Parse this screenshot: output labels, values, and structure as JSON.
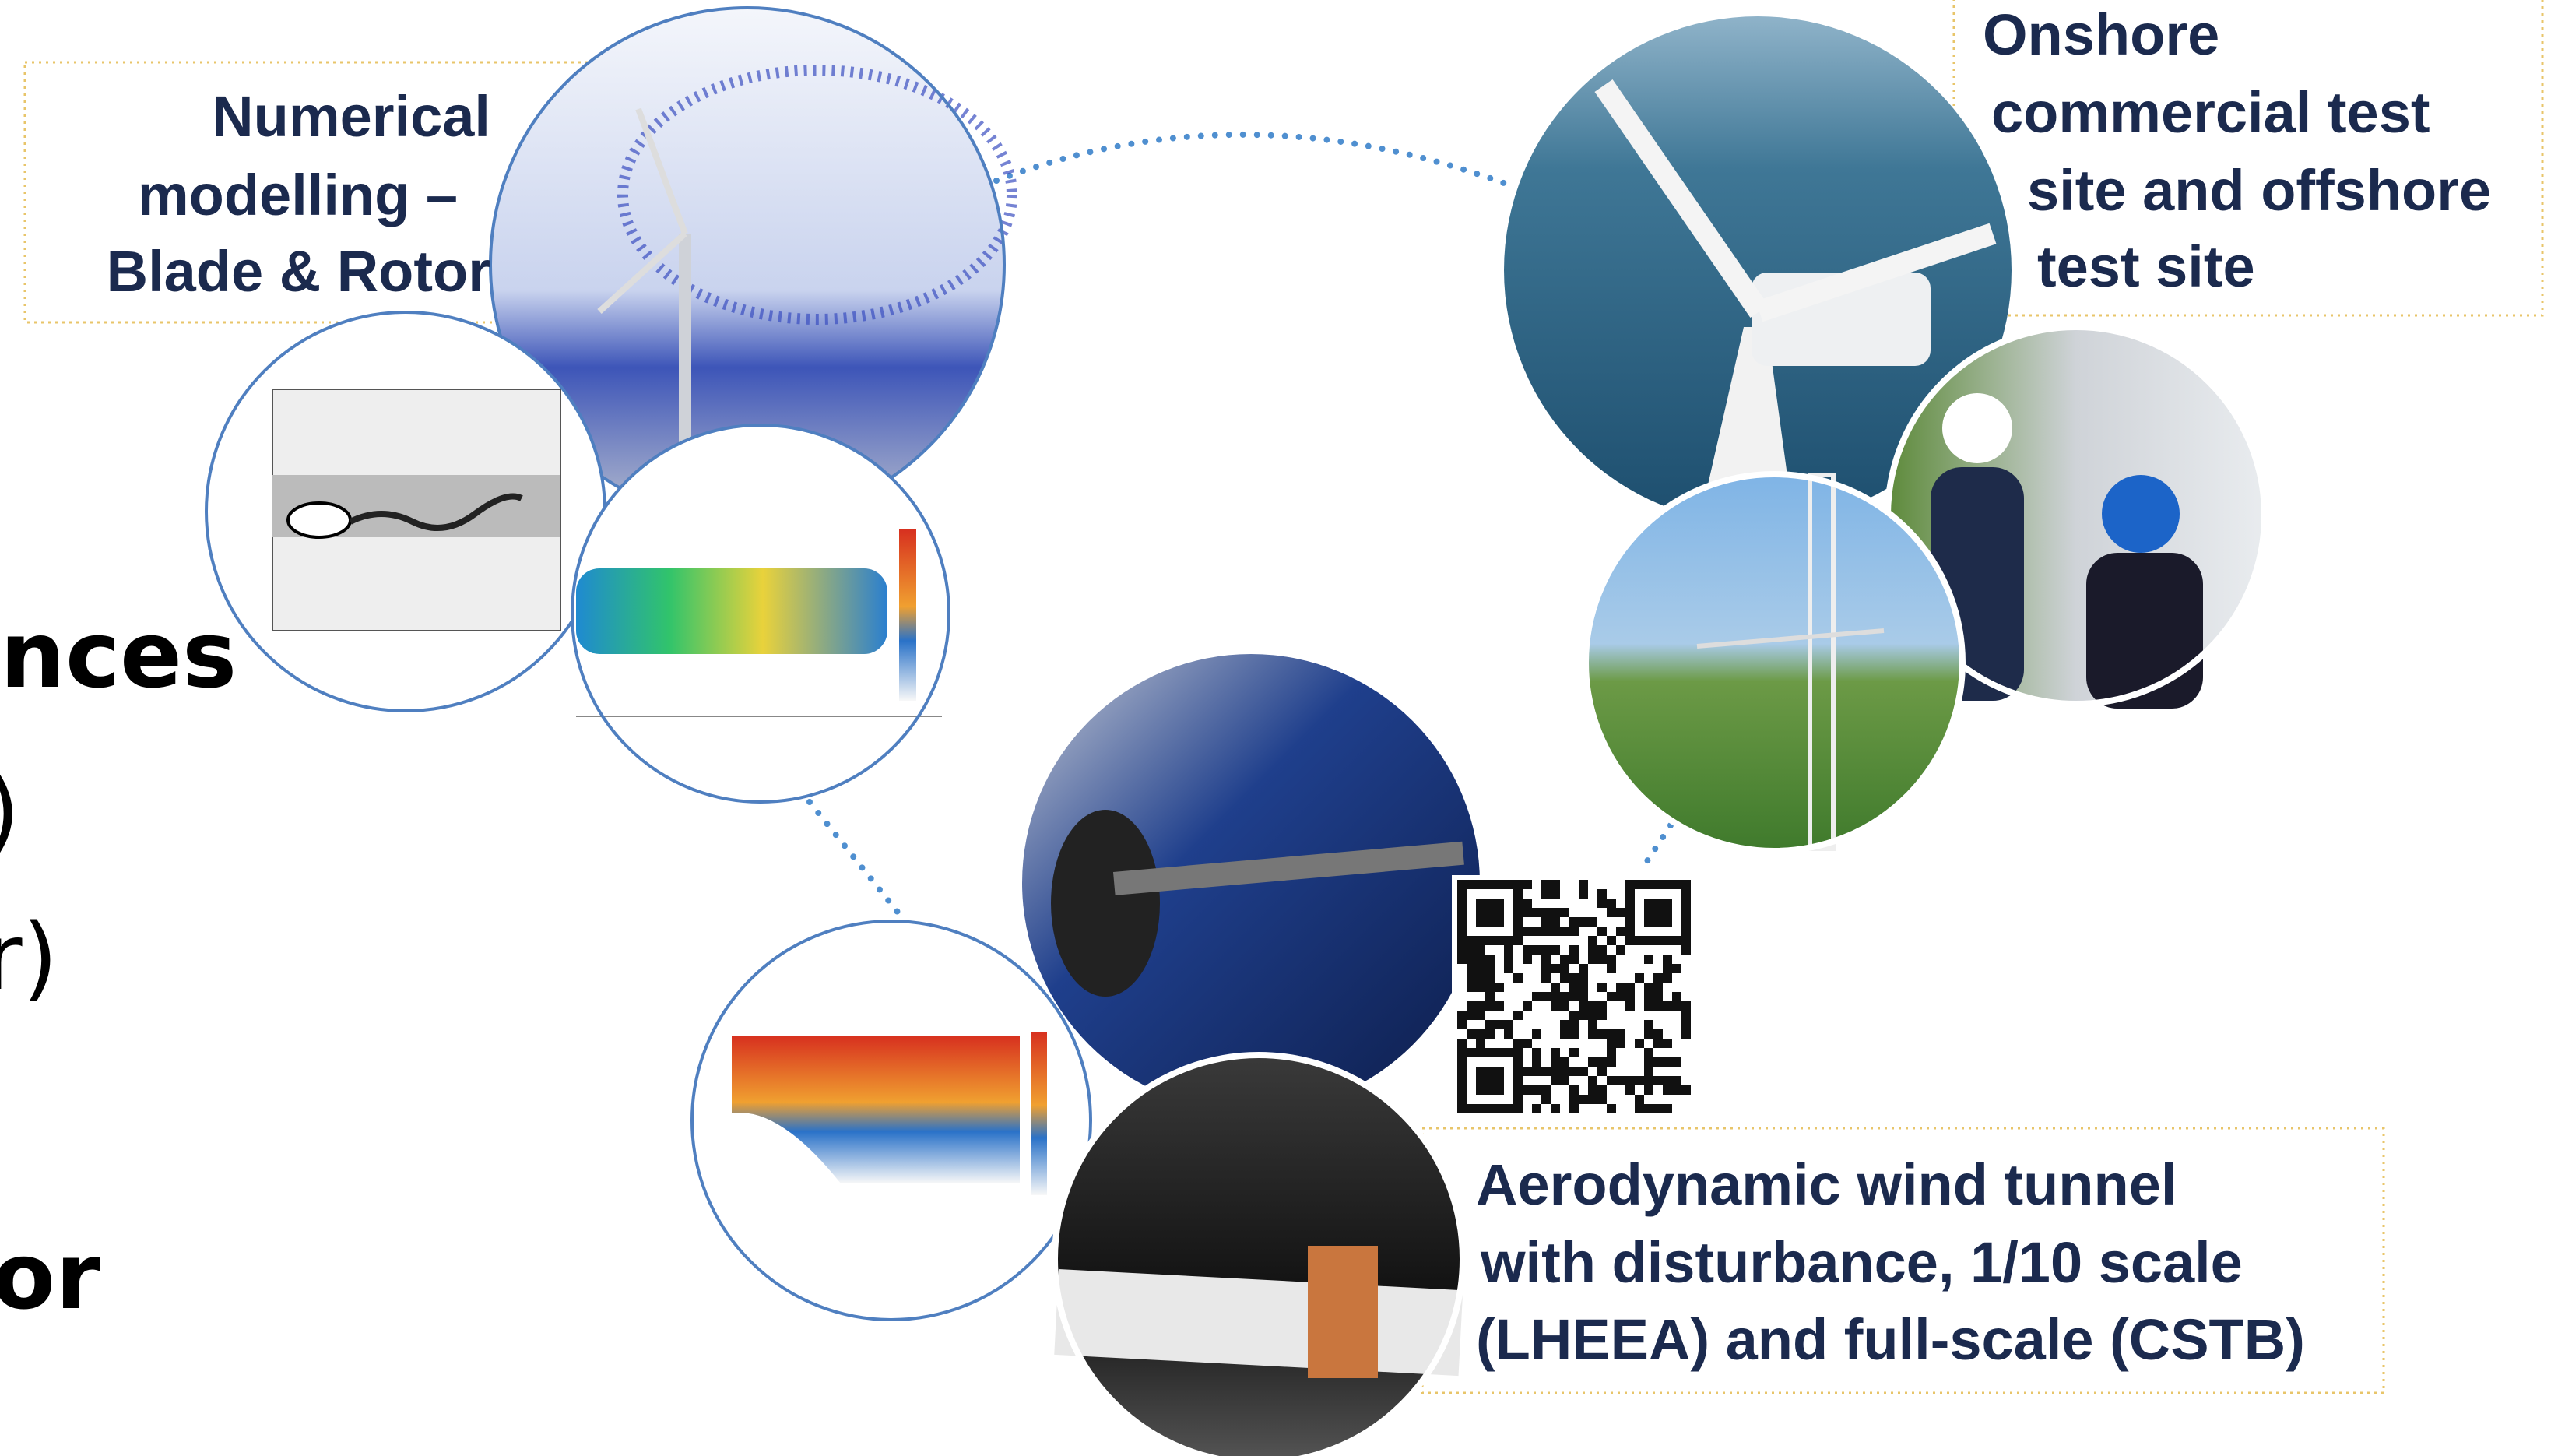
{
  "left_text": [
    "nces",
    ")",
    "r)",
    "or"
  ],
  "numerical_modelling": {
    "lines": [
      "Numerical",
      "modelling –",
      "Blade & Rotor"
    ]
  },
  "test_sites": {
    "lines": [
      "Onshore",
      "commercial test",
      "site and offshore",
      "test site"
    ]
  },
  "wind_tunnel": {
    "lines": [
      "Aerodynamic wind tunnel",
      "with disturbance, 1/10 scale",
      "(LHEEA) and full-scale (CSTB)"
    ]
  }
}
